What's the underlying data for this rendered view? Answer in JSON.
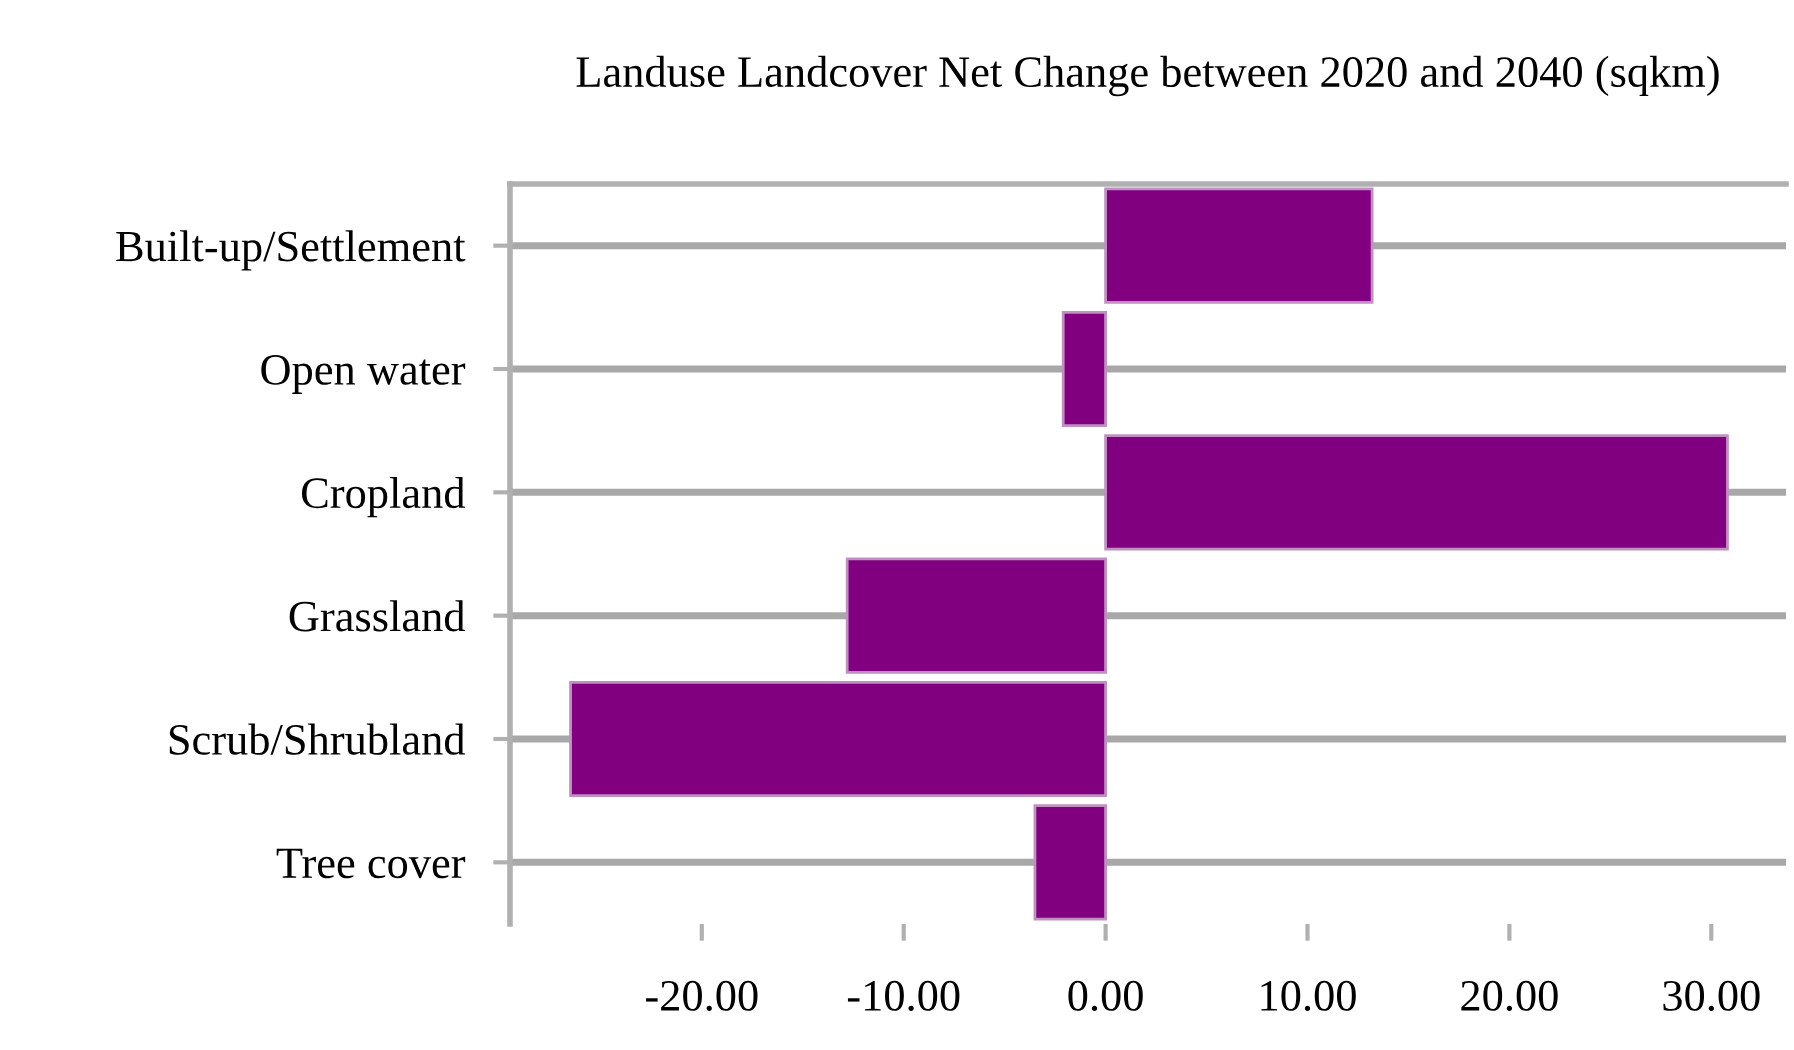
{
  "chart_data": {
    "type": "bar",
    "orientation": "horizontal",
    "title": "Landuse Landcover Net Change between 2020 and 2040 (sqkm)",
    "categories": [
      "Built-up/Settlement",
      "Open water",
      "Cropland",
      "Grassland",
      "Scrub/Shrubland",
      "Tree cover"
    ],
    "values": [
      13.2,
      -2.1,
      30.8,
      -12.8,
      -26.5,
      -3.5
    ],
    "color": "#800080",
    "xlim": [
      -29.5,
      33.7
    ],
    "xticks": [
      {
        "value": -20,
        "label": "-20.00"
      },
      {
        "value": -10,
        "label": "-10.00"
      },
      {
        "value": 0,
        "label": "0.00"
      },
      {
        "value": 10,
        "label": "10.00"
      },
      {
        "value": 20,
        "label": "20.00"
      },
      {
        "value": 30,
        "label": "30.00"
      }
    ],
    "grid": "y",
    "legend": false
  }
}
